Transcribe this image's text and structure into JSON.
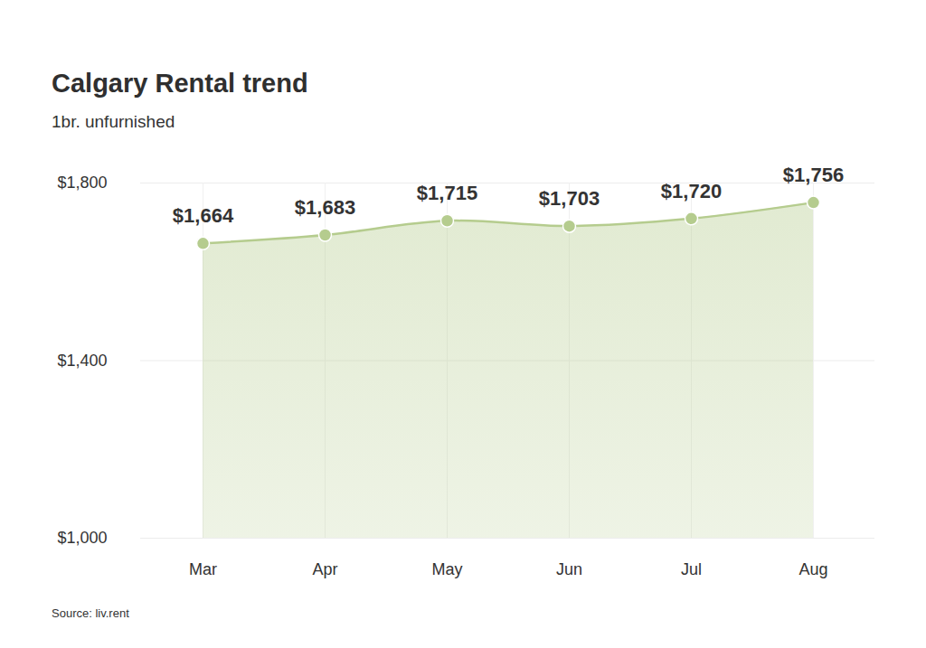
{
  "chart_data": {
    "type": "area",
    "title": "Calgary Rental trend",
    "subtitle": "1br. unfurnished",
    "source": "Source: liv.rent",
    "categories": [
      "Mar",
      "Apr",
      "May",
      "Jun",
      "Jul",
      "Aug"
    ],
    "values": [
      1664,
      1683,
      1715,
      1703,
      1720,
      1756
    ],
    "value_labels": [
      "$1,664",
      "$1,683",
      "$1,715",
      "$1,703",
      "$1,720",
      "$1,756"
    ],
    "color": "#b5cc8e",
    "marker": "circle",
    "data_labels": true,
    "grid": true,
    "ylim": [
      1000,
      1800
    ],
    "yticks": [
      {
        "value": 1000,
        "label": "$1,000"
      },
      {
        "value": 1400,
        "label": "$1,400"
      },
      {
        "value": 1800,
        "label": "$1,800"
      }
    ]
  }
}
